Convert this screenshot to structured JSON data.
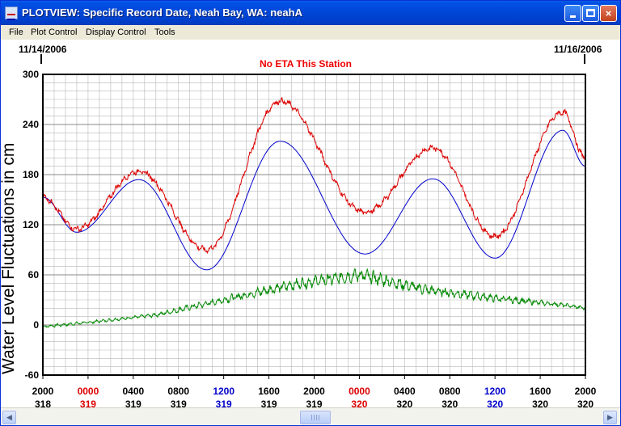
{
  "window": {
    "title": "PLOTVIEW: Specific Record Date, Neah Bay, WA: neahA",
    "minimize_label": "",
    "maximize_label": "",
    "close_label": "×"
  },
  "menu": [
    "File",
    "Plot Control",
    "Display Control",
    "Tools"
  ],
  "plot": {
    "start_date": "11/14/2006",
    "end_date": "11/16/2006",
    "notice": "No ETA This Station",
    "y_axis_label": "Water Level Fluctuations in cm"
  },
  "colors": {
    "observed": "#dd0000",
    "predicted": "#0000cc",
    "residual": "#008800",
    "midnight_tick": "#dd0000",
    "noon_tick": "#0000cc",
    "grid": "#b8b8b8"
  },
  "chart_data": {
    "type": "line",
    "ylabel": "Water Level Fluctuations in cm",
    "ylim": [
      -60,
      300
    ],
    "yticks": [
      -60,
      0,
      60,
      120,
      180,
      240,
      300
    ],
    "xlim_hours": [
      0,
      48
    ],
    "grid": true,
    "x_tick_labels": [
      {
        "time": "2000",
        "day": "318",
        "color": "black"
      },
      {
        "time": "0000",
        "day": "319",
        "color": "red"
      },
      {
        "time": "0400",
        "day": "319",
        "color": "black"
      },
      {
        "time": "0800",
        "day": "319",
        "color": "black"
      },
      {
        "time": "1200",
        "day": "319",
        "color": "blue"
      },
      {
        "time": "1600",
        "day": "319",
        "color": "black"
      },
      {
        "time": "2000",
        "day": "319",
        "color": "black"
      },
      {
        "time": "0000",
        "day": "320",
        "color": "red"
      },
      {
        "time": "0400",
        "day": "320",
        "color": "black"
      },
      {
        "time": "0800",
        "day": "320",
        "color": "black"
      },
      {
        "time": "1200",
        "day": "320",
        "color": "blue"
      },
      {
        "time": "1600",
        "day": "320",
        "color": "black"
      },
      {
        "time": "2000",
        "day": "320",
        "color": "black"
      }
    ],
    "series": [
      {
        "kind": "predicted",
        "hours": [
          0,
          3,
          8.5,
          14.5,
          21,
          28.5,
          34.5,
          40,
          46,
          48
        ],
        "values": [
          153,
          111,
          174,
          66,
          220,
          85,
          175,
          80,
          233,
          190
        ]
      },
      {
        "kind": "observed",
        "hours": [
          0,
          3,
          8.5,
          14.5,
          21,
          28.5,
          34.5,
          40,
          46,
          48
        ],
        "values": [
          153,
          115,
          184,
          90,
          268,
          135,
          212,
          106,
          255,
          200
        ]
      },
      {
        "kind": "residual",
        "hours": [
          0,
          4,
          10,
          16,
          22,
          28,
          34,
          40,
          46,
          48
        ],
        "values": [
          -2,
          3,
          12,
          30,
          48,
          60,
          42,
          32,
          24,
          20
        ]
      }
    ]
  }
}
